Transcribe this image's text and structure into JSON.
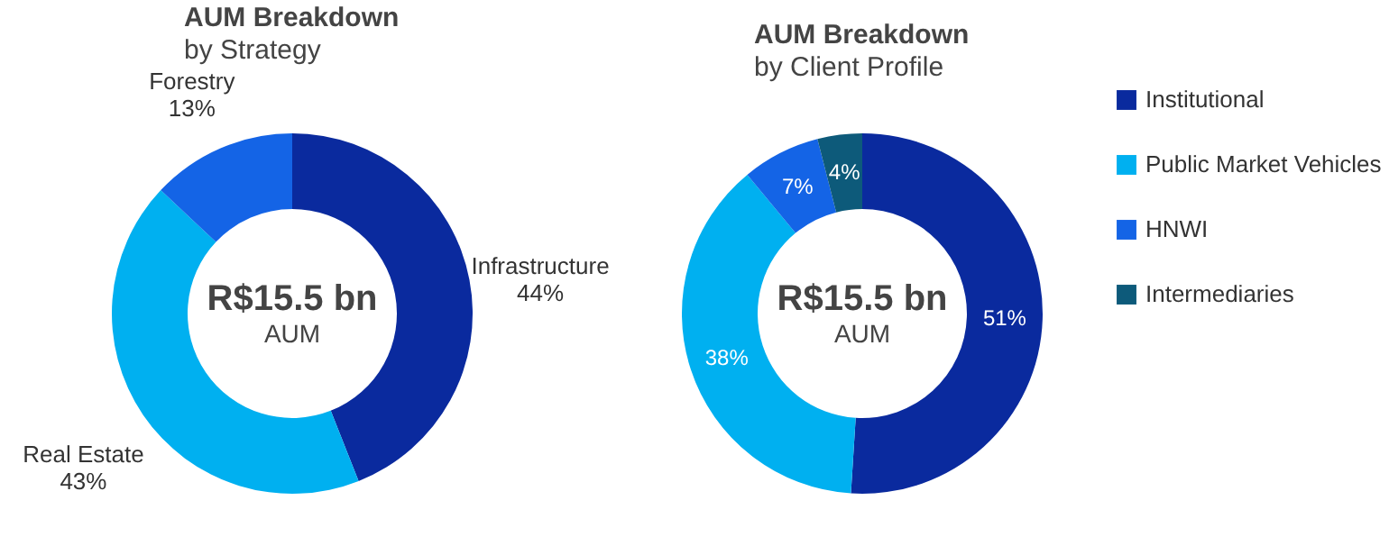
{
  "chart_data": [
    {
      "type": "donut",
      "title": "AUM Breakdown",
      "subtitle": "by Strategy",
      "categories": [
        "Infrastructure",
        "Real Estate",
        "Forestry"
      ],
      "values": [
        44,
        43,
        13
      ],
      "colors": [
        "#0a2a9e",
        "#00b0f0",
        "#1464e6"
      ],
      "data_labels": true,
      "value_labels": [
        "44%",
        "43%",
        "13%"
      ],
      "legend": false,
      "annotations": [
        "R$15.5 bn",
        "AUM"
      ]
    },
    {
      "type": "donut",
      "title": "AUM Breakdown",
      "subtitle": "by Client Profile",
      "categories": [
        "Institutional",
        "Public Market Vehicles",
        "HNWI",
        "Intermediaries"
      ],
      "values": [
        51,
        38,
        7,
        4
      ],
      "colors": [
        "#0a2a9e",
        "#00b0f0",
        "#1464e6",
        "#0d5a7a"
      ],
      "data_labels": true,
      "value_labels": [
        "51%",
        "38%",
        "7%",
        "4%"
      ],
      "legend": "right",
      "annotations": [
        "R$15.5 bn",
        "AUM"
      ]
    }
  ]
}
